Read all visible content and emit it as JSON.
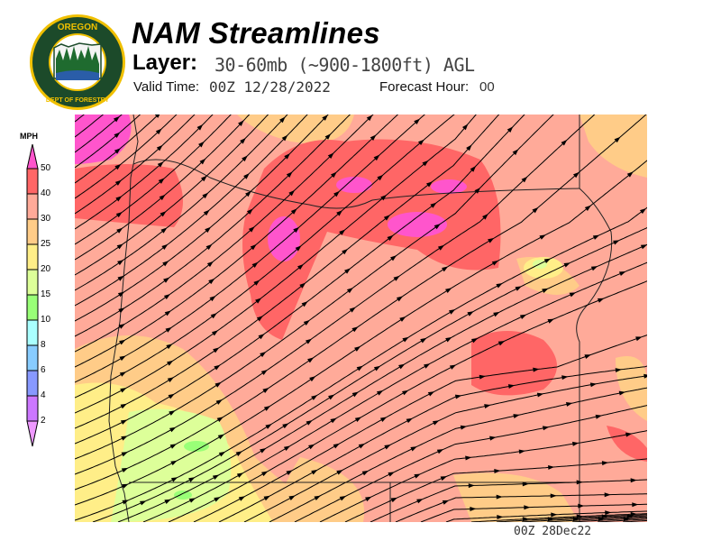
{
  "header": {
    "logo_text": [
      "OREGON",
      "DEPARTMENT OF FORESTRY"
    ],
    "title": "NAM Streamlines",
    "layer_label": "Layer:",
    "layer_value": "30-60mb (~900-1800ft) AGL",
    "valid_time_label": "Valid Time:",
    "valid_time_value": "00Z 12/28/2022",
    "forecast_hour_label": "Forecast Hour:",
    "forecast_hour_value": "00"
  },
  "legend": {
    "title": "MPH",
    "labels": [
      "50",
      "40",
      "30",
      "25",
      "20",
      "15",
      "10",
      "8",
      "6",
      "4",
      "2"
    ],
    "colors": {
      "above_50": "#ff55cc",
      "40_50": "#ff6666",
      "30_40": "#ffaa99",
      "25_30": "#ffcc88",
      "20_25": "#ffee88",
      "15_20": "#ddff99",
      "10_15": "#99ff77",
      "8_10": "#aaffff",
      "6_8": "#88ccff",
      "4_6": "#8899ff",
      "2_4": "#cc77ff",
      "below_2": "#ee99ff"
    }
  },
  "map": {
    "region": "Oregon",
    "field": "wind streamlines colored by speed"
  },
  "footer": {
    "time_stamp": "00Z 28Dec22"
  }
}
